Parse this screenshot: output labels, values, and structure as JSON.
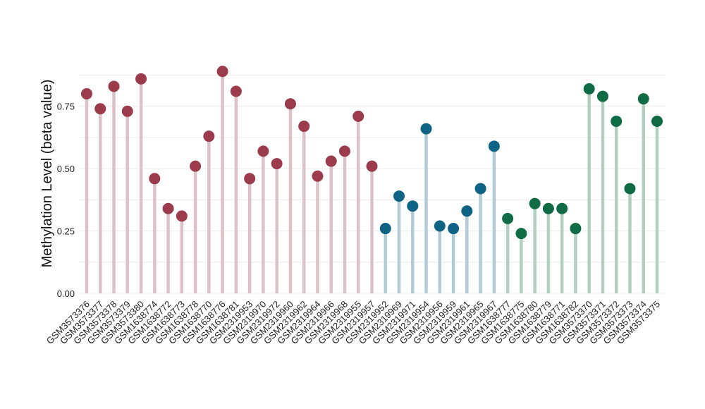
{
  "chart_data": {
    "type": "lollipop",
    "title": "",
    "xlabel": "",
    "ylabel": "Methylation Level (beta value)",
    "ylim": [
      0,
      0.95
    ],
    "yticks": [
      0.0,
      0.25,
      0.5,
      0.75
    ],
    "ytick_labels": [
      "0.00",
      "0.25",
      "0.50",
      "0.75"
    ],
    "grid": true,
    "legend": "none",
    "points": [
      {
        "label": "GSM3573376",
        "value": 0.8,
        "group": "g1"
      },
      {
        "label": "GSM3573377",
        "value": 0.74,
        "group": "g1"
      },
      {
        "label": "GSM3573378",
        "value": 0.83,
        "group": "g1"
      },
      {
        "label": "GSM3573379",
        "value": 0.73,
        "group": "g1"
      },
      {
        "label": "GSM3573380",
        "value": 0.86,
        "group": "g1"
      },
      {
        "label": "GSM1638774",
        "value": 0.46,
        "group": "g1"
      },
      {
        "label": "GSM1638772",
        "value": 0.34,
        "group": "g1"
      },
      {
        "label": "GSM1638773",
        "value": 0.31,
        "group": "g1"
      },
      {
        "label": "GSM1638778",
        "value": 0.51,
        "group": "g1"
      },
      {
        "label": "GSM1638770",
        "value": 0.63,
        "group": "g1"
      },
      {
        "label": "GSM1638776",
        "value": 0.89,
        "group": "g1"
      },
      {
        "label": "GSM1638781",
        "value": 0.81,
        "group": "g1"
      },
      {
        "label": "GSM2319953",
        "value": 0.46,
        "group": "g1"
      },
      {
        "label": "GSM2319970",
        "value": 0.57,
        "group": "g1"
      },
      {
        "label": "GSM2319972",
        "value": 0.52,
        "group": "g1"
      },
      {
        "label": "GSM2319960",
        "value": 0.76,
        "group": "g1"
      },
      {
        "label": "GSM2319962",
        "value": 0.67,
        "group": "g1"
      },
      {
        "label": "GSM2319964",
        "value": 0.47,
        "group": "g1"
      },
      {
        "label": "GSM2319966",
        "value": 0.53,
        "group": "g1"
      },
      {
        "label": "GSM2319968",
        "value": 0.57,
        "group": "g1"
      },
      {
        "label": "GSM2319955",
        "value": 0.71,
        "group": "g1"
      },
      {
        "label": "GSM2319957",
        "value": 0.51,
        "group": "g1"
      },
      {
        "label": "GSM2319952",
        "value": 0.26,
        "group": "g2"
      },
      {
        "label": "GSM2319969",
        "value": 0.39,
        "group": "g2"
      },
      {
        "label": "GSM2319971",
        "value": 0.35,
        "group": "g2"
      },
      {
        "label": "GSM2319954",
        "value": 0.66,
        "group": "g2"
      },
      {
        "label": "GSM2319956",
        "value": 0.27,
        "group": "g2"
      },
      {
        "label": "GSM2319959",
        "value": 0.26,
        "group": "g2"
      },
      {
        "label": "GSM2319961",
        "value": 0.33,
        "group": "g2"
      },
      {
        "label": "GSM2319965",
        "value": 0.42,
        "group": "g2"
      },
      {
        "label": "GSM2319967",
        "value": 0.59,
        "group": "g2"
      },
      {
        "label": "GSM1638777",
        "value": 0.3,
        "group": "g3"
      },
      {
        "label": "GSM1638775",
        "value": 0.24,
        "group": "g3"
      },
      {
        "label": "GSM1638780",
        "value": 0.36,
        "group": "g3"
      },
      {
        "label": "GSM1638779",
        "value": 0.34,
        "group": "g3"
      },
      {
        "label": "GSM1638771",
        "value": 0.34,
        "group": "g3"
      },
      {
        "label": "GSM1638782",
        "value": 0.26,
        "group": "g3"
      },
      {
        "label": "GSM3573370",
        "value": 0.82,
        "group": "g3"
      },
      {
        "label": "GSM3573371",
        "value": 0.79,
        "group": "g3"
      },
      {
        "label": "GSM3573372",
        "value": 0.69,
        "group": "g3"
      },
      {
        "label": "GSM3573373",
        "value": 0.42,
        "group": "g3"
      },
      {
        "label": "GSM3573374",
        "value": 0.78,
        "group": "g3"
      },
      {
        "label": "GSM3573375",
        "value": 0.69,
        "group": "g3"
      }
    ],
    "group_colors": {
      "g1": {
        "dot": "#9b3b4b",
        "stem": "#dcc2c8"
      },
      "g2": {
        "dot": "#0f6384",
        "stem": "#b3cbd6"
      },
      "g3": {
        "dot": "#0e6b45",
        "stem": "#b1d0c2"
      }
    },
    "grid_color": "#ececec",
    "text_color": "#222222"
  }
}
